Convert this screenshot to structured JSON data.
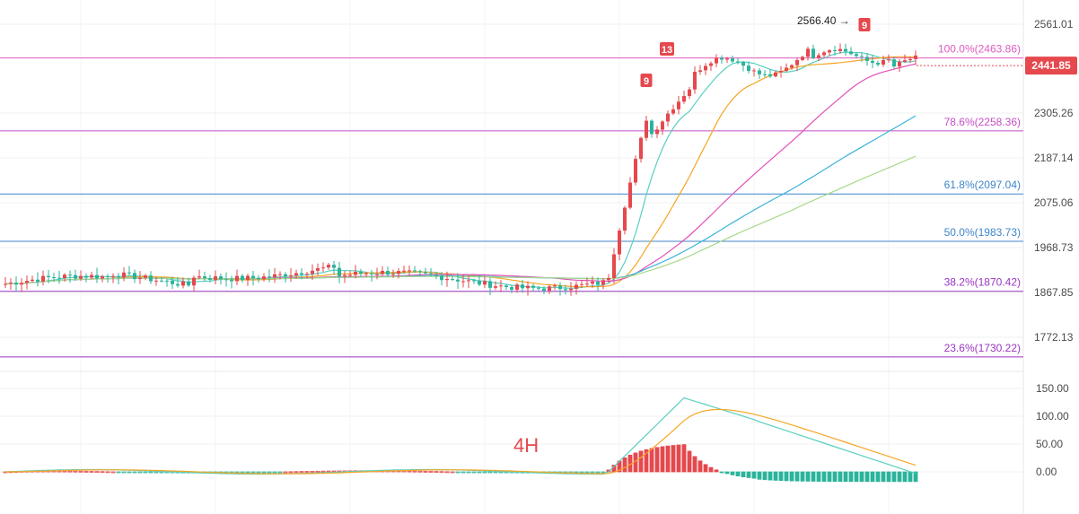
{
  "chart_data": {
    "type": "candlestick",
    "timeframe": "4H",
    "price_axis": {
      "ticks": [
        2561.01,
        2305.26,
        2187.14,
        2075.06,
        1968.73,
        1867.85,
        1772.13
      ],
      "tick_labels": [
        "2561.01",
        "2305.26",
        "2187.14",
        "2075.06",
        "1968.73",
        "1867.85",
        "1772.13"
      ],
      "ylim": [
        1700,
        2590
      ]
    },
    "current_price": {
      "value": 2441.85,
      "label": "2441.85"
    },
    "fibonacci_levels": [
      {
        "label": "100.0%(2463.86)",
        "price": 2463.86,
        "color": "#e05bc0"
      },
      {
        "label": "78.6%(2258.36)",
        "price": 2258.36,
        "color": "#c44ec6"
      },
      {
        "label": "61.8%(2097.04)",
        "price": 2097.04,
        "color": "#3f86c9"
      },
      {
        "label": "50.0%(1983.73)",
        "price": 1983.73,
        "color": "#3f86c9"
      },
      {
        "label": "38.2%(1870.42)",
        "price": 1870.42,
        "color": "#9a36c2"
      },
      {
        "label": "23.6%(1730.22)",
        "price": 1730.22,
        "color": "#9a36c2"
      }
    ],
    "annotations": {
      "high_marker": "2566.40 →",
      "td_sequential": [
        "9",
        "13",
        "9"
      ]
    },
    "moving_average_colors": [
      "#58cfc0",
      "#f5a623",
      "#e24fb8",
      "#3ab4d9",
      "#a6d98b"
    ],
    "candle_colors": {
      "up": "#e5484d",
      "down": "#2bb39b"
    },
    "macd": {
      "axis_ticks": [
        150,
        100,
        50,
        0
      ],
      "tick_labels": [
        "150.00",
        "100.00",
        "50.00",
        "0.00"
      ],
      "ylim": [
        -45,
        170
      ],
      "line_colors": {
        "dif": "#58cfc0",
        "dea": "#f5a623"
      }
    }
  }
}
